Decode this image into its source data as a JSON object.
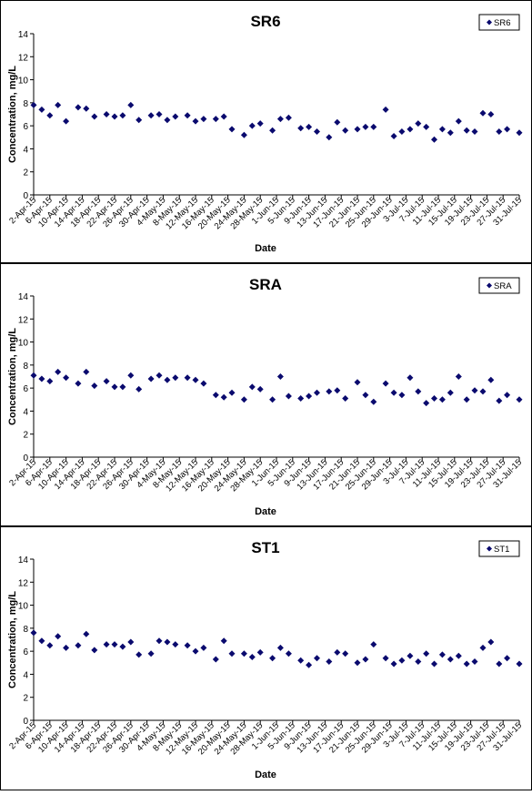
{
  "colors": {
    "marker": "#0a0a6e",
    "frame": "#000000",
    "background": "#ffffff"
  },
  "chart_data": [
    {
      "type": "scatter",
      "title": "SR6",
      "xlabel": "Date",
      "ylabel": "Concentration, mg/L",
      "ylim": [
        0,
        14
      ],
      "yticks": [
        0,
        2,
        4,
        6,
        8,
        10,
        12,
        14
      ],
      "xlim": [
        "2015-04-02",
        "2015-07-31"
      ],
      "xtick_labels": [
        "2-Apr-15",
        "6-Apr-15",
        "10-Apr-15",
        "14-Apr-15",
        "18-Apr-15",
        "22-Apr-15",
        "26-Apr-15",
        "30-Apr-15",
        "4-May-15",
        "8-May-15",
        "12-May-15",
        "16-May-15",
        "20-May-15",
        "24-May-15",
        "28-May-15",
        "1-Jun-15",
        "5-Jun-15",
        "9-Jun-15",
        "13-Jun-15",
        "17-Jun-15",
        "21-Jun-15",
        "25-Jun-15",
        "29-Jun-15",
        "3-Jul-15",
        "7-Jul-15",
        "11-Jul-15",
        "15-Jul-15",
        "19-Jul-15",
        "23-Jul-15",
        "27-Jul-15",
        "31-Jul-15"
      ],
      "grid": false,
      "legend_position": "top-right",
      "series": [
        {
          "name": "SR6",
          "marker": "diamond",
          "x": [
            "2015-04-02",
            "2015-04-04",
            "2015-04-06",
            "2015-04-08",
            "2015-04-10",
            "2015-04-13",
            "2015-04-15",
            "2015-04-17",
            "2015-04-20",
            "2015-04-22",
            "2015-04-24",
            "2015-04-26",
            "2015-04-28",
            "2015-05-01",
            "2015-05-03",
            "2015-05-05",
            "2015-05-07",
            "2015-05-10",
            "2015-05-12",
            "2015-05-14",
            "2015-05-17",
            "2015-05-19",
            "2015-05-21",
            "2015-05-24",
            "2015-05-26",
            "2015-05-28",
            "2015-05-31",
            "2015-06-02",
            "2015-06-04",
            "2015-06-07",
            "2015-06-09",
            "2015-06-11",
            "2015-06-14",
            "2015-06-16",
            "2015-06-18",
            "2015-06-21",
            "2015-06-23",
            "2015-06-25",
            "2015-06-28",
            "2015-06-30",
            "2015-07-02",
            "2015-07-04",
            "2015-07-06",
            "2015-07-08",
            "2015-07-10",
            "2015-07-12",
            "2015-07-14",
            "2015-07-16",
            "2015-07-18",
            "2015-07-20",
            "2015-07-22",
            "2015-07-24",
            "2015-07-26",
            "2015-07-28",
            "2015-07-31"
          ],
          "y": [
            7.8,
            7.4,
            6.9,
            7.8,
            6.4,
            7.6,
            7.5,
            6.8,
            7.0,
            6.8,
            6.9,
            7.8,
            6.5,
            6.9,
            7.0,
            6.5,
            6.8,
            6.9,
            6.4,
            6.6,
            6.6,
            6.8,
            5.7,
            5.2,
            6.0,
            6.2,
            5.6,
            6.6,
            6.7,
            5.8,
            5.9,
            5.5,
            5.0,
            6.3,
            5.6,
            5.7,
            5.9,
            5.9,
            7.4,
            5.1,
            5.5,
            5.7,
            6.2,
            5.9,
            4.8,
            5.7,
            5.4,
            6.4,
            5.6,
            5.5,
            7.1,
            7.0,
            5.5,
            5.7,
            5.4
          ]
        }
      ]
    },
    {
      "type": "scatter",
      "title": "SRA",
      "xlabel": "Date",
      "ylabel": "Concentration, mg/L",
      "ylim": [
        0,
        14
      ],
      "yticks": [
        0,
        2,
        4,
        6,
        8,
        10,
        12,
        14
      ],
      "xlim": [
        "2015-04-02",
        "2015-07-31"
      ],
      "xtick_labels": [
        "2-Apr-15",
        "6-Apr-15",
        "10-Apr-15",
        "14-Apr-15",
        "18-Apr-15",
        "22-Apr-15",
        "26-Apr-15",
        "30-Apr-15",
        "4-May-15",
        "8-May-15",
        "12-May-15",
        "16-May-15",
        "20-May-15",
        "24-May-15",
        "28-May-15",
        "1-Jun-15",
        "5-Jun-15",
        "9-Jun-15",
        "13-Jun-15",
        "17-Jun-15",
        "21-Jun-15",
        "25-Jun-15",
        "29-Jun-15",
        "3-Jul-15",
        "7-Jul-15",
        "11-Jul-15",
        "15-Jul-15",
        "19-Jul-15",
        "23-Jul-15",
        "27-Jul-15",
        "31-Jul-15"
      ],
      "grid": false,
      "legend_position": "top-right",
      "series": [
        {
          "name": "SRA",
          "marker": "diamond",
          "x": [
            "2015-04-02",
            "2015-04-04",
            "2015-04-06",
            "2015-04-08",
            "2015-04-10",
            "2015-04-13",
            "2015-04-15",
            "2015-04-17",
            "2015-04-20",
            "2015-04-22",
            "2015-04-24",
            "2015-04-26",
            "2015-04-28",
            "2015-05-01",
            "2015-05-03",
            "2015-05-05",
            "2015-05-07",
            "2015-05-10",
            "2015-05-12",
            "2015-05-14",
            "2015-05-17",
            "2015-05-19",
            "2015-05-21",
            "2015-05-24",
            "2015-05-26",
            "2015-05-28",
            "2015-05-31",
            "2015-06-02",
            "2015-06-04",
            "2015-06-07",
            "2015-06-09",
            "2015-06-11",
            "2015-06-14",
            "2015-06-16",
            "2015-06-18",
            "2015-06-21",
            "2015-06-23",
            "2015-06-25",
            "2015-06-28",
            "2015-06-30",
            "2015-07-02",
            "2015-07-04",
            "2015-07-06",
            "2015-07-08",
            "2015-07-10",
            "2015-07-12",
            "2015-07-14",
            "2015-07-16",
            "2015-07-18",
            "2015-07-20",
            "2015-07-22",
            "2015-07-24",
            "2015-07-26",
            "2015-07-28",
            "2015-07-31"
          ],
          "y": [
            7.1,
            6.8,
            6.6,
            7.4,
            6.9,
            6.4,
            7.4,
            6.2,
            6.6,
            6.1,
            6.1,
            7.1,
            5.9,
            6.8,
            7.1,
            6.7,
            6.9,
            6.9,
            6.7,
            6.4,
            5.4,
            5.2,
            5.6,
            5.0,
            6.1,
            5.9,
            5.0,
            7.0,
            5.3,
            5.1,
            5.3,
            5.6,
            5.7,
            5.8,
            5.1,
            6.5,
            5.4,
            4.8,
            6.4,
            5.6,
            5.4,
            6.9,
            5.7,
            4.7,
            5.1,
            5.0,
            5.6,
            7.0,
            5.0,
            5.8,
            5.7,
            6.7,
            4.9,
            5.4,
            5.0
          ]
        }
      ]
    },
    {
      "type": "scatter",
      "title": "ST1",
      "xlabel": "Date",
      "ylabel": "Concentration, mg/L",
      "ylim": [
        0,
        14
      ],
      "yticks": [
        0,
        2,
        4,
        6,
        8,
        10,
        12,
        14
      ],
      "xlim": [
        "2015-04-02",
        "2015-07-31"
      ],
      "xtick_labels": [
        "2-Apr-15",
        "6-Apr-15",
        "10-Apr-15",
        "14-Apr-15",
        "18-Apr-15",
        "22-Apr-15",
        "26-Apr-15",
        "30-Apr-15",
        "4-May-15",
        "8-May-15",
        "12-May-15",
        "16-May-15",
        "20-May-15",
        "24-May-15",
        "28-May-15",
        "1-Jun-15",
        "5-Jun-15",
        "9-Jun-15",
        "13-Jun-15",
        "17-Jun-15",
        "21-Jun-15",
        "25-Jun-15",
        "29-Jun-15",
        "3-Jul-15",
        "7-Jul-15",
        "11-Jul-15",
        "15-Jul-15",
        "19-Jul-15",
        "23-Jul-15",
        "27-Jul-15",
        "31-Jul-15"
      ],
      "grid": false,
      "legend_position": "top-right",
      "series": [
        {
          "name": "ST1",
          "marker": "diamond",
          "x": [
            "2015-04-02",
            "2015-04-04",
            "2015-04-06",
            "2015-04-08",
            "2015-04-10",
            "2015-04-13",
            "2015-04-15",
            "2015-04-17",
            "2015-04-20",
            "2015-04-22",
            "2015-04-24",
            "2015-04-26",
            "2015-04-28",
            "2015-05-01",
            "2015-05-03",
            "2015-05-05",
            "2015-05-07",
            "2015-05-10",
            "2015-05-12",
            "2015-05-14",
            "2015-05-17",
            "2015-05-19",
            "2015-05-21",
            "2015-05-24",
            "2015-05-26",
            "2015-05-28",
            "2015-05-31",
            "2015-06-02",
            "2015-06-04",
            "2015-06-07",
            "2015-06-09",
            "2015-06-11",
            "2015-06-14",
            "2015-06-16",
            "2015-06-18",
            "2015-06-21",
            "2015-06-23",
            "2015-06-25",
            "2015-06-28",
            "2015-06-30",
            "2015-07-02",
            "2015-07-04",
            "2015-07-06",
            "2015-07-08",
            "2015-07-10",
            "2015-07-12",
            "2015-07-14",
            "2015-07-16",
            "2015-07-18",
            "2015-07-20",
            "2015-07-22",
            "2015-07-24",
            "2015-07-26",
            "2015-07-28",
            "2015-07-31"
          ],
          "y": [
            7.6,
            6.9,
            6.5,
            7.3,
            6.3,
            6.5,
            7.5,
            6.1,
            6.6,
            6.6,
            6.4,
            6.8,
            5.7,
            5.8,
            6.9,
            6.8,
            6.6,
            6.5,
            6.0,
            6.3,
            5.3,
            6.9,
            5.8,
            5.8,
            5.5,
            5.9,
            5.4,
            6.3,
            5.8,
            5.2,
            4.8,
            5.4,
            5.1,
            5.9,
            5.8,
            5.0,
            5.3,
            6.6,
            5.4,
            4.9,
            5.2,
            5.6,
            5.1,
            5.8,
            4.9,
            5.7,
            5.3,
            5.6,
            4.9,
            5.1,
            6.3,
            6.8,
            4.9,
            5.4,
            4.9
          ]
        }
      ]
    }
  ]
}
